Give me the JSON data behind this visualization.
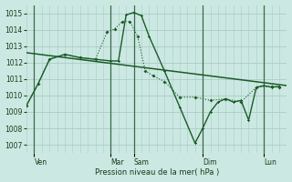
{
  "background_color": "#cce8e2",
  "grid_major_color": "#aaccc6",
  "line_color": "#1a5c28",
  "xlabel": "Pression niveau de la mer( hPa )",
  "ylim": [
    1006.5,
    1015.5
  ],
  "xlim": [
    0,
    34
  ],
  "day_labels": [
    "Ven",
    "Mar",
    "Sam",
    "Dim",
    "Lun"
  ],
  "day_tick_x": [
    1,
    11,
    14,
    23,
    31
  ],
  "day_vline_x": [
    1,
    11,
    14,
    23,
    31
  ],
  "yticks": [
    1007,
    1008,
    1009,
    1010,
    1011,
    1012,
    1013,
    1014,
    1015
  ],
  "trend_x": [
    0,
    34
  ],
  "trend_y": [
    1012.6,
    1010.6
  ],
  "line_main_x": [
    0,
    1.5,
    3,
    5,
    7,
    9,
    11,
    12,
    13,
    14,
    15,
    16,
    18,
    20,
    22,
    23,
    24,
    25,
    26,
    27,
    28,
    29,
    30,
    31,
    32,
    33
  ],
  "line_main_y": [
    1009.4,
    1010.7,
    1012.2,
    1012.5,
    1012.3,
    1012.2,
    1012.1,
    1012.1,
    1014.9,
    1015.05,
    1014.85,
    1013.6,
    1011.5,
    1009.3,
    1007.1,
    1008.0,
    1009.0,
    1009.6,
    1009.8,
    1009.6,
    1009.7,
    1008.5,
    1010.5,
    1010.6,
    1010.5,
    1010.55
  ],
  "line_dotted_x": [
    0,
    1.5,
    3,
    5,
    7,
    9,
    10.5,
    11.5,
    12.5,
    13.5,
    14.5,
    15.5,
    16.5,
    18,
    20,
    22,
    24,
    26,
    28,
    30,
    32,
    33
  ],
  "line_dotted_y": [
    1009.4,
    1010.7,
    1012.2,
    1012.5,
    1012.3,
    1012.2,
    1013.85,
    1014.05,
    1014.5,
    1014.5,
    1013.6,
    1011.5,
    1011.2,
    1010.85,
    1009.9,
    1009.9,
    1009.7,
    1009.8,
    1009.6,
    1010.5,
    1010.55,
    1010.5
  ]
}
